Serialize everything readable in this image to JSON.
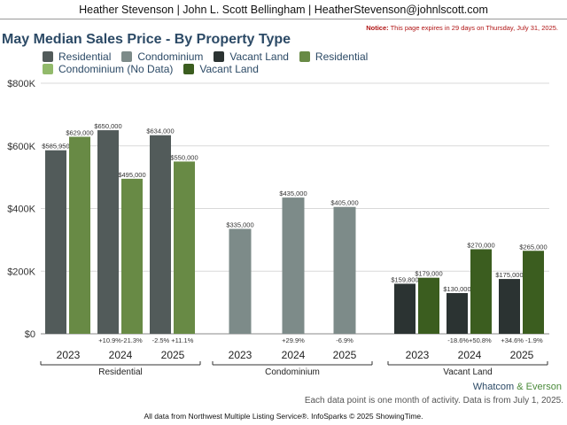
{
  "header": {
    "text": "Heather Stevenson | John L. Scott Bellingham | HeatherStevenson@johnlscott.com"
  },
  "notice": {
    "label": "Notice:",
    "text": "This page expires in 29 days on Thursday, July 31, 2025."
  },
  "colors": {
    "residential": "#525b5a",
    "condominium": "#7d8b89",
    "vacant_land": "#2b3332",
    "residential_alt": "#688a45",
    "condominium_nodata": "#92ba6b",
    "vacant_land_alt": "#3b5d1f",
    "grid": "#d9d9d9",
    "axis_text": "#333333"
  },
  "legend": [
    {
      "label": "Residential",
      "color_key": "residential"
    },
    {
      "label": "Condominium",
      "color_key": "condominium"
    },
    {
      "label": "Vacant Land",
      "color_key": "vacant_land"
    },
    {
      "label": "Residential",
      "color_key": "residential_alt"
    },
    {
      "label": "Condominium (No Data)",
      "color_key": "condominium_nodata"
    },
    {
      "label": "Vacant Land",
      "color_key": "vacant_land_alt"
    }
  ],
  "chart_data": {
    "type": "bar",
    "title": "May Median Sales Price - By Property Type",
    "ylim": [
      0,
      800000
    ],
    "yticks": [
      {
        "value": 0,
        "label": "$0"
      },
      {
        "value": 200000,
        "label": "$200K"
      },
      {
        "value": 400000,
        "label": "$400K"
      },
      {
        "value": 600000,
        "label": "$600K"
      },
      {
        "value": 800000,
        "label": "$800K"
      }
    ],
    "grid": true,
    "legend_position": "top-left",
    "groups": [
      {
        "name": "Residential",
        "years": [
          {
            "year": "2023",
            "bars": [
              {
                "value": 585950,
                "label": "$585,950",
                "color_key": "residential"
              },
              {
                "value": 629000,
                "label": "$629,000",
                "color_key": "residential_alt"
              }
            ],
            "change": ""
          },
          {
            "year": "2024",
            "bars": [
              {
                "value": 650000,
                "label": "$650,000",
                "color_key": "residential"
              },
              {
                "value": 495000,
                "label": "$495,000",
                "color_key": "residential_alt"
              }
            ],
            "change": "+10.9%-21.3%"
          },
          {
            "year": "2025",
            "bars": [
              {
                "value": 634000,
                "label": "$634,000",
                "color_key": "residential"
              },
              {
                "value": 550000,
                "label": "$550,000",
                "color_key": "residential_alt"
              }
            ],
            "change": "-2.5% +11.1%"
          }
        ]
      },
      {
        "name": "Condominium",
        "years": [
          {
            "year": "2023",
            "bars": [
              {
                "value": 335000,
                "label": "$335,000",
                "color_key": "condominium"
              }
            ],
            "change": ""
          },
          {
            "year": "2024",
            "bars": [
              {
                "value": 435000,
                "label": "$435,000",
                "color_key": "condominium"
              }
            ],
            "change": "+29.9%"
          },
          {
            "year": "2025",
            "bars": [
              {
                "value": 405000,
                "label": "$405,000",
                "color_key": "condominium"
              }
            ],
            "change": "-6.9%"
          }
        ]
      },
      {
        "name": "Vacant Land",
        "years": [
          {
            "year": "2023",
            "bars": [
              {
                "value": 159800,
                "label": "$159,800",
                "color_key": "vacant_land"
              },
              {
                "value": 179000,
                "label": "$179,000",
                "color_key": "vacant_land_alt"
              }
            ],
            "change": ""
          },
          {
            "year": "2024",
            "bars": [
              {
                "value": 130000,
                "label": "$130,000",
                "color_key": "vacant_land"
              },
              {
                "value": 270000,
                "label": "$270,000",
                "color_key": "vacant_land_alt"
              }
            ],
            "change": "-18.6%+50.8%"
          },
          {
            "year": "2025",
            "bars": [
              {
                "value": 175000,
                "label": "$175,000",
                "color_key": "vacant_land"
              },
              {
                "value": 265000,
                "label": "$265,000",
                "color_key": "vacant_land_alt"
              }
            ],
            "change": "+34.6% -1.9%"
          }
        ]
      }
    ]
  },
  "brand": {
    "part1": "Whatcom",
    "amp": "&",
    "part2": "Everson"
  },
  "note": "Each data point is one month of activity. Data is from July 1, 2025.",
  "footer": "All data from Northwest Multiple Listing Service®. InfoSparks © 2025 ShowingTime."
}
